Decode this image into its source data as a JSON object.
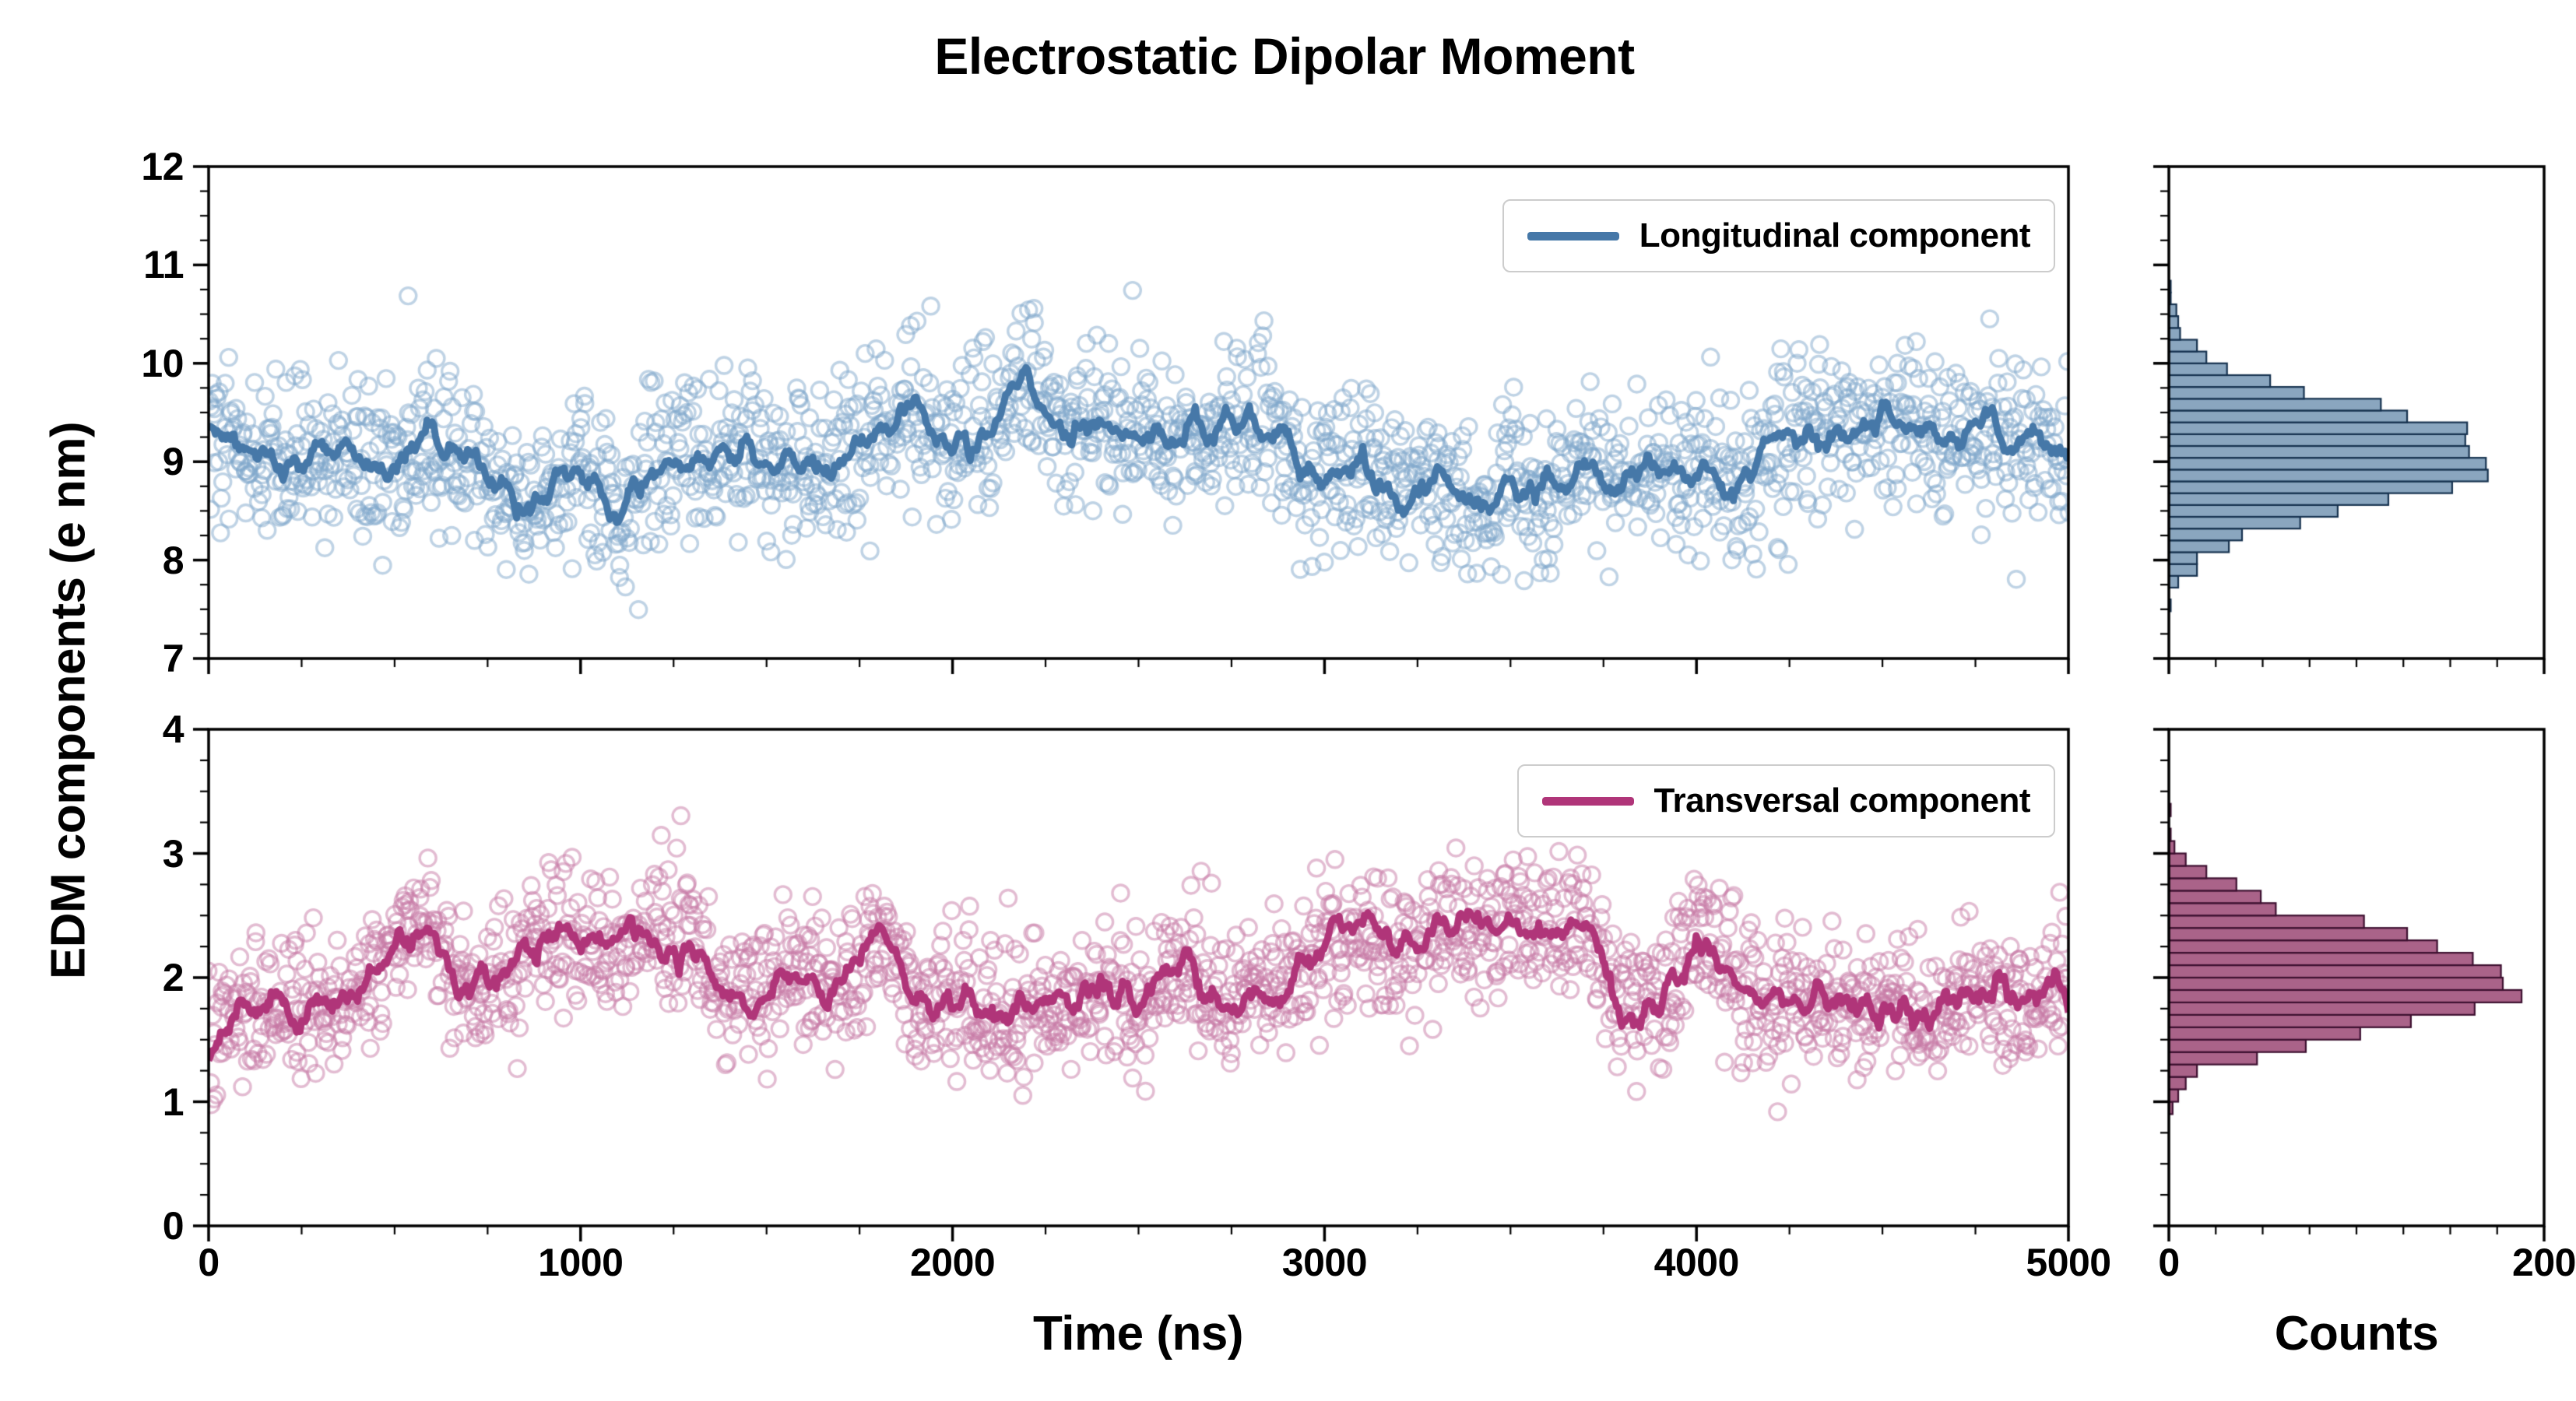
{
  "title": "Electrostatic Dipolar Moment",
  "xlabel": "Time (ns)",
  "ylabel": "EDM components (e nm)",
  "counts_label": "Counts",
  "colors": {
    "axis": "#000000",
    "background": "#ffffff",
    "longitudinal_line": "#4678a8",
    "longitudinal_scatter": "#7fa8cc",
    "longitudinal_hist_fill": "#8aa6bf",
    "longitudinal_hist_edge": "#16324f",
    "transversal_line": "#b03579",
    "transversal_scatter": "#c779a6",
    "transversal_hist_fill": "#aa6389",
    "transversal_hist_edge": "#3d1030"
  },
  "chart_data": {
    "type": "scatter",
    "x_range": [
      0,
      5000
    ],
    "x_ticks": [
      0,
      1000,
      2000,
      3000,
      4000,
      5000
    ],
    "x_minor_step": 250,
    "counts_range": [
      0,
      200
    ],
    "counts_ticks": [
      0,
      200
    ],
    "counts_minor_step": 25,
    "legend_position": "upper right",
    "grid": false,
    "panels": [
      {
        "name": "longitudinal",
        "legend": "Longitudinal component",
        "y_range": [
          7,
          12
        ],
        "y_ticks": [
          7,
          8,
          9,
          10,
          11,
          12
        ],
        "y_minor_step": 0.25,
        "n_points": 1800,
        "scatter_sigma": 0.42,
        "line_noise": 0.1,
        "hist_bin_width": 0.12,
        "seed": 42,
        "mean_x": [
          0,
          100,
          200,
          300,
          400,
          500,
          600,
          700,
          800,
          900,
          1000,
          1100,
          1200,
          1300,
          1400,
          1500,
          1600,
          1700,
          1800,
          1900,
          2000,
          2100,
          2200,
          2300,
          2400,
          2500,
          2600,
          2700,
          2800,
          2900,
          3000,
          3100,
          3200,
          3300,
          3400,
          3500,
          3600,
          3700,
          3800,
          3900,
          4000,
          4100,
          4200,
          4300,
          4400,
          4500,
          4600,
          4700,
          4800,
          4900,
          5000
        ],
        "mean_y": [
          9.3,
          9.1,
          9.0,
          9.1,
          9.0,
          8.9,
          9.3,
          9.0,
          8.7,
          8.6,
          9.0,
          8.5,
          8.9,
          9.0,
          9.1,
          9.0,
          8.9,
          9.0,
          9.3,
          9.5,
          9.2,
          9.3,
          9.9,
          9.2,
          9.4,
          9.3,
          9.2,
          9.3,
          9.4,
          9.2,
          8.8,
          9.0,
          8.7,
          8.8,
          8.6,
          8.8,
          8.7,
          8.9,
          8.8,
          9.0,
          8.9,
          8.7,
          9.2,
          9.3,
          9.2,
          9.4,
          9.3,
          9.2,
          9.4,
          9.2,
          9.1
        ]
      },
      {
        "name": "transversal",
        "legend": "Transversal component",
        "y_range": [
          0,
          4
        ],
        "y_ticks": [
          0,
          1,
          2,
          3,
          4
        ],
        "y_minor_step": 0.25,
        "n_points": 1800,
        "scatter_sigma": 0.28,
        "line_noise": 0.09,
        "hist_bin_width": 0.1,
        "seed": 7,
        "mean_x": [
          0,
          100,
          200,
          300,
          400,
          500,
          600,
          700,
          800,
          900,
          1000,
          1100,
          1200,
          1300,
          1400,
          1500,
          1600,
          1700,
          1800,
          1900,
          2000,
          2100,
          2200,
          2300,
          2400,
          2500,
          2600,
          2700,
          2800,
          2900,
          3000,
          3100,
          3200,
          3300,
          3400,
          3500,
          3600,
          3700,
          3800,
          3900,
          4000,
          4100,
          4200,
          4300,
          4400,
          4500,
          4600,
          4700,
          4800,
          4900,
          5000
        ],
        "mean_y": [
          1.4,
          1.75,
          1.8,
          1.75,
          1.85,
          2.35,
          2.4,
          1.85,
          2.1,
          2.35,
          2.25,
          2.3,
          2.35,
          2.3,
          1.8,
          1.9,
          2.0,
          1.9,
          2.4,
          1.8,
          1.75,
          1.8,
          1.75,
          1.8,
          1.85,
          1.8,
          2.15,
          1.8,
          1.85,
          1.9,
          2.3,
          2.35,
          2.25,
          2.4,
          2.35,
          2.4,
          2.45,
          2.4,
          1.8,
          1.75,
          2.4,
          2.0,
          1.8,
          1.85,
          1.75,
          1.8,
          1.65,
          1.8,
          1.85,
          1.9,
          1.9
        ]
      }
    ]
  }
}
